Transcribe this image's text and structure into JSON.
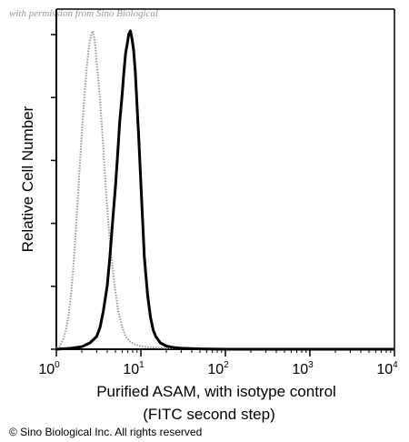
{
  "watermark": "with permission from Sino Biological",
  "copyright": "© Sino Biological Inc. All rights reserved",
  "chart_data": {
    "type": "line",
    "xlabel_line1": "Purified ASAM, with isotype control",
    "xlabel_line2": "(FITC second step)",
    "ylabel": "Relative Cell Number",
    "x_scale": "log",
    "xlim": [
      1,
      10000
    ],
    "ylim": [
      0,
      100
    ],
    "x_ticks": [
      {
        "base": "10",
        "exp": "0",
        "value": 1
      },
      {
        "base": "10",
        "exp": "1",
        "value": 10
      },
      {
        "base": "10",
        "exp": "2",
        "value": 100
      },
      {
        "base": "10",
        "exp": "3",
        "value": 1000
      },
      {
        "base": "10",
        "exp": "4",
        "value": 10000
      }
    ],
    "grid": false,
    "series": [
      {
        "role": "isotype control",
        "color": "#9a9a9a",
        "style": "dotted",
        "x": [
          1.0,
          1.1,
          1.2,
          1.3,
          1.4,
          1.5,
          1.6,
          1.7,
          1.8,
          1.9,
          2.0,
          2.1,
          2.2,
          2.3,
          2.4,
          2.5,
          2.6,
          2.7,
          2.8,
          2.9,
          3.0,
          3.2,
          3.4,
          3.6,
          3.8,
          4.0,
          4.3,
          4.6,
          5.0,
          5.4,
          6.0,
          6.6,
          7.4,
          8.5,
          10,
          12,
          15,
          20,
          30,
          50,
          100,
          1000,
          10000
        ],
        "y": [
          0.5,
          1,
          3,
          6,
          11,
          18,
          27,
          37,
          48,
          58,
          68,
          76,
          83,
          89,
          94,
          97,
          99,
          100,
          98,
          95,
          90,
          82,
          73,
          63,
          53,
          44,
          34,
          26,
          18,
          12,
          7,
          4,
          2.5,
          1.5,
          1,
          0.7,
          0.5,
          0.3,
          0.2,
          0.1,
          0.1,
          0,
          0
        ]
      },
      {
        "role": "Purified ASAM",
        "color": "#000000",
        "style": "solid",
        "x": [
          1.0,
          1.5,
          2.0,
          2.5,
          3.0,
          3.3,
          3.6,
          4.0,
          4.3,
          4.6,
          5.0,
          5.3,
          5.6,
          6.0,
          6.3,
          6.6,
          7.0,
          7.2,
          7.5,
          7.8,
          8.2,
          8.6,
          9.0,
          9.5,
          10,
          10.5,
          11,
          12,
          13,
          14,
          15,
          17,
          20,
          25,
          30,
          50,
          100,
          1000,
          10000
        ],
        "y": [
          0,
          0.3,
          0.8,
          2,
          4,
          7,
          12,
          20,
          29,
          39,
          51,
          61,
          71,
          80,
          87,
          93,
          97,
          99,
          100,
          98,
          94,
          87,
          77,
          65,
          52,
          40,
          29,
          17,
          10,
          6,
          4,
          2,
          1,
          0.5,
          0.3,
          0.1,
          0,
          0,
          0
        ]
      }
    ]
  }
}
